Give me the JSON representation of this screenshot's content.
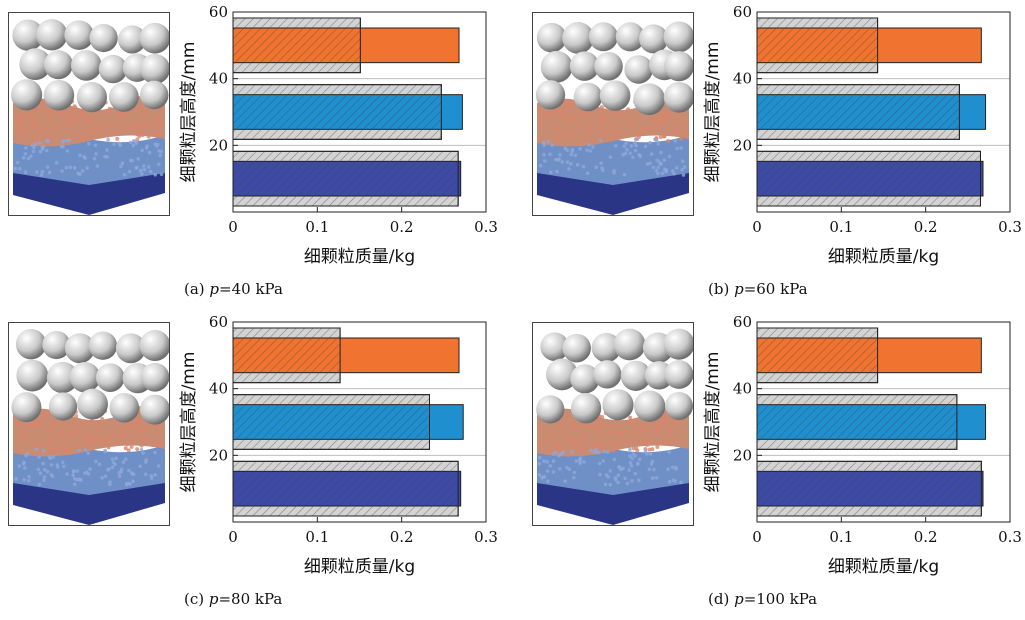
{
  "colors": {
    "top_layer": "#f07330",
    "middle_layer": "#1f8fcf",
    "bottom_layer": "#3d4aa6",
    "reference_hatch": "#bdbdbd"
  },
  "panels": [
    {
      "caption_prefix": "(a) ",
      "caption_var": "p",
      "caption_rest": "=40 kPa",
      "chart_data": {
        "type": "bar",
        "orientation": "horizontal",
        "xlabel": "细颗粒质量/kg",
        "ylabel": "细颗粒层高度/mm",
        "xlim": [
          0,
          0.3
        ],
        "ylim": [
          0,
          60
        ],
        "xticks": [
          "0",
          "0.1",
          "0.2",
          "0.3"
        ],
        "yticks": [
          "20",
          "40",
          "60"
        ],
        "layers": [
          {
            "y_range": [
              40,
              60
            ],
            "reference": 0.151,
            "final": 0.268,
            "color": "#f07330"
          },
          {
            "y_range": [
              20,
              40
            ],
            "reference": 0.247,
            "final": 0.272,
            "color": "#1f8fcf"
          },
          {
            "y_range": [
              0,
              20
            ],
            "reference": 0.267,
            "final": 0.27,
            "color": "#3d4aa6"
          }
        ]
      }
    },
    {
      "caption_prefix": "(b) ",
      "caption_var": "p",
      "caption_rest": "=60 kPa",
      "chart_data": {
        "type": "bar",
        "orientation": "horizontal",
        "xlabel": "细颗粒质量/kg",
        "ylabel": "细颗粒层高度/mm",
        "xlim": [
          0,
          0.3
        ],
        "ylim": [
          0,
          60
        ],
        "xticks": [
          "0",
          "0.1",
          "0.2",
          "0.3"
        ],
        "yticks": [
          "20",
          "40",
          "60"
        ],
        "layers": [
          {
            "y_range": [
              40,
              60
            ],
            "reference": 0.143,
            "final": 0.266,
            "color": "#f07330"
          },
          {
            "y_range": [
              20,
              40
            ],
            "reference": 0.24,
            "final": 0.271,
            "color": "#1f8fcf"
          },
          {
            "y_range": [
              0,
              20
            ],
            "reference": 0.265,
            "final": 0.268,
            "color": "#3d4aa6"
          }
        ]
      }
    },
    {
      "caption_prefix": "(c) ",
      "caption_var": "p",
      "caption_rest": "=80 kPa",
      "chart_data": {
        "type": "bar",
        "orientation": "horizontal",
        "xlabel": "细颗粒质量/kg",
        "ylabel": "细颗粒层高度/mm",
        "xlim": [
          0,
          0.3
        ],
        "ylim": [
          0,
          60
        ],
        "xticks": [
          "0",
          "0.1",
          "0.2",
          "0.3"
        ],
        "yticks": [
          "20",
          "40",
          "60"
        ],
        "layers": [
          {
            "y_range": [
              40,
              60
            ],
            "reference": 0.127,
            "final": 0.268,
            "color": "#f07330"
          },
          {
            "y_range": [
              20,
              40
            ],
            "reference": 0.233,
            "final": 0.273,
            "color": "#1f8fcf"
          },
          {
            "y_range": [
              0,
              20
            ],
            "reference": 0.267,
            "final": 0.27,
            "color": "#3d4aa6"
          }
        ]
      }
    },
    {
      "caption_prefix": "(d) ",
      "caption_var": "p",
      "caption_rest": "=100 kPa",
      "chart_data": {
        "type": "bar",
        "orientation": "horizontal",
        "xlabel": "细颗粒质量/kg",
        "ylabel": "细颗粒层高度/mm",
        "xlim": [
          0,
          0.3
        ],
        "ylim": [
          0,
          60
        ],
        "xticks": [
          "0",
          "0.1",
          "0.2",
          "0.3"
        ],
        "yticks": [
          "20",
          "40",
          "60"
        ],
        "layers": [
          {
            "y_range": [
              40,
              60
            ],
            "reference": 0.143,
            "final": 0.266,
            "color": "#f07330"
          },
          {
            "y_range": [
              20,
              40
            ],
            "reference": 0.237,
            "final": 0.271,
            "color": "#1f8fcf"
          },
          {
            "y_range": [
              0,
              20
            ],
            "reference": 0.266,
            "final": 0.268,
            "color": "#3d4aa6"
          }
        ]
      }
    }
  ]
}
